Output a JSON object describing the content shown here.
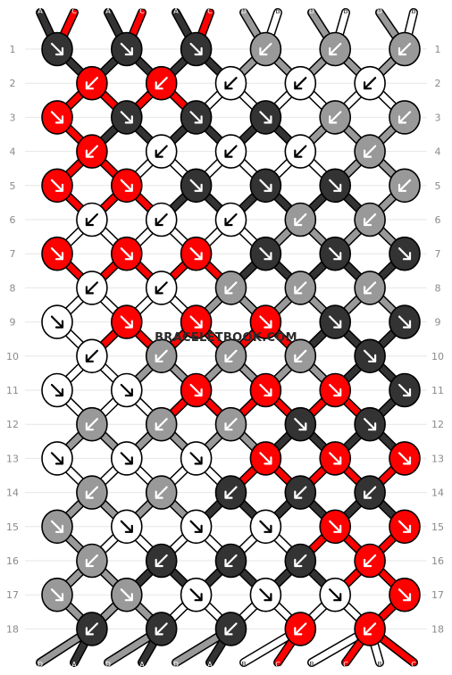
{
  "watermark": "BRACELETBOOK.COM",
  "colors": {
    "A": "#333333",
    "B": "#ffffff",
    "C": "#ff0000",
    "D": "#999999",
    "outline": "#000000"
  },
  "top_labels": [
    "A",
    "C",
    "A",
    "C",
    "A",
    "C",
    "D",
    "B",
    "D",
    "B",
    "D",
    "B"
  ],
  "bottom_labels": [
    "D",
    "A",
    "D",
    "A",
    "D",
    "A",
    "B",
    "C",
    "B",
    "C",
    "B",
    "C"
  ],
  "row_numbers": [
    "1",
    "2",
    "3",
    "4",
    "5",
    "6",
    "7",
    "8",
    "9",
    "10",
    "11",
    "12",
    "13",
    "14",
    "15",
    "16",
    "17",
    "18"
  ],
  "knots": [
    {
      "row": 1,
      "col": 1,
      "color": "A",
      "dir": "RR"
    },
    {
      "row": 1,
      "col": 3,
      "color": "A",
      "dir": "RR"
    },
    {
      "row": 1,
      "col": 5,
      "color": "A",
      "dir": "RR"
    },
    {
      "row": 1,
      "col": 7,
      "color": "D",
      "dir": "LL"
    },
    {
      "row": 1,
      "col": 9,
      "color": "D",
      "dir": "LL"
    },
    {
      "row": 1,
      "col": 11,
      "color": "D",
      "dir": "LL"
    },
    {
      "row": 2,
      "col": 2,
      "color": "C",
      "dir": "LL"
    },
    {
      "row": 2,
      "col": 4,
      "color": "C",
      "dir": "LL"
    },
    {
      "row": 2,
      "col": 6,
      "color": "B",
      "dir": "LL"
    },
    {
      "row": 2,
      "col": 8,
      "color": "B",
      "dir": "LL"
    },
    {
      "row": 2,
      "col": 10,
      "color": "B",
      "dir": "LL"
    },
    {
      "row": 3,
      "col": 1,
      "color": "C",
      "dir": "RR"
    },
    {
      "row": 3,
      "col": 3,
      "color": "A",
      "dir": "RR"
    },
    {
      "row": 3,
      "col": 5,
      "color": "A",
      "dir": "RR"
    },
    {
      "row": 3,
      "col": 7,
      "color": "A",
      "dir": "RR"
    },
    {
      "row": 3,
      "col": 9,
      "color": "D",
      "dir": "LL"
    },
    {
      "row": 3,
      "col": 11,
      "color": "D",
      "dir": "LL"
    },
    {
      "row": 4,
      "col": 2,
      "color": "C",
      "dir": "LL"
    },
    {
      "row": 4,
      "col": 4,
      "color": "B",
      "dir": "LL"
    },
    {
      "row": 4,
      "col": 6,
      "color": "B",
      "dir": "LL"
    },
    {
      "row": 4,
      "col": 8,
      "color": "B",
      "dir": "LL"
    },
    {
      "row": 4,
      "col": 10,
      "color": "D",
      "dir": "LL"
    },
    {
      "row": 5,
      "col": 1,
      "color": "C",
      "dir": "RR"
    },
    {
      "row": 5,
      "col": 3,
      "color": "C",
      "dir": "RR"
    },
    {
      "row": 5,
      "col": 5,
      "color": "A",
      "dir": "RR"
    },
    {
      "row": 5,
      "col": 7,
      "color": "A",
      "dir": "RR"
    },
    {
      "row": 5,
      "col": 9,
      "color": "A",
      "dir": "RR"
    },
    {
      "row": 5,
      "col": 11,
      "color": "D",
      "dir": "LL"
    },
    {
      "row": 6,
      "col": 2,
      "color": "B",
      "dir": "LL"
    },
    {
      "row": 6,
      "col": 4,
      "color": "B",
      "dir": "LL"
    },
    {
      "row": 6,
      "col": 6,
      "color": "B",
      "dir": "LL"
    },
    {
      "row": 6,
      "col": 8,
      "color": "D",
      "dir": "LL"
    },
    {
      "row": 6,
      "col": 10,
      "color": "D",
      "dir": "LL"
    },
    {
      "row": 7,
      "col": 1,
      "color": "C",
      "dir": "RR"
    },
    {
      "row": 7,
      "col": 3,
      "color": "C",
      "dir": "RR"
    },
    {
      "row": 7,
      "col": 5,
      "color": "C",
      "dir": "RR"
    },
    {
      "row": 7,
      "col": 7,
      "color": "A",
      "dir": "RR"
    },
    {
      "row": 7,
      "col": 9,
      "color": "A",
      "dir": "RR"
    },
    {
      "row": 7,
      "col": 11,
      "color": "A",
      "dir": "RR"
    },
    {
      "row": 8,
      "col": 2,
      "color": "B",
      "dir": "LL"
    },
    {
      "row": 8,
      "col": 4,
      "color": "B",
      "dir": "LL"
    },
    {
      "row": 8,
      "col": 6,
      "color": "D",
      "dir": "LL"
    },
    {
      "row": 8,
      "col": 8,
      "color": "D",
      "dir": "LL"
    },
    {
      "row": 8,
      "col": 10,
      "color": "D",
      "dir": "LL"
    },
    {
      "row": 9,
      "col": 1,
      "color": "B",
      "dir": "RR"
    },
    {
      "row": 9,
      "col": 3,
      "color": "C",
      "dir": "RR"
    },
    {
      "row": 9,
      "col": 5,
      "color": "C",
      "dir": "RR"
    },
    {
      "row": 9,
      "col": 7,
      "color": "C",
      "dir": "RR"
    },
    {
      "row": 9,
      "col": 9,
      "color": "A",
      "dir": "RR"
    },
    {
      "row": 9,
      "col": 11,
      "color": "A",
      "dir": "RR"
    },
    {
      "row": 10,
      "col": 2,
      "color": "B",
      "dir": "LL"
    },
    {
      "row": 10,
      "col": 4,
      "color": "D",
      "dir": "LL"
    },
    {
      "row": 10,
      "col": 6,
      "color": "D",
      "dir": "LL"
    },
    {
      "row": 10,
      "col": 8,
      "color": "D",
      "dir": "LL"
    },
    {
      "row": 10,
      "col": 10,
      "color": "A",
      "dir": "RR"
    },
    {
      "row": 11,
      "col": 1,
      "color": "B",
      "dir": "RR"
    },
    {
      "row": 11,
      "col": 3,
      "color": "B",
      "dir": "RR"
    },
    {
      "row": 11,
      "col": 5,
      "color": "C",
      "dir": "RR"
    },
    {
      "row": 11,
      "col": 7,
      "color": "C",
      "dir": "RR"
    },
    {
      "row": 11,
      "col": 9,
      "color": "C",
      "dir": "RR"
    },
    {
      "row": 11,
      "col": 11,
      "color": "A",
      "dir": "RR"
    },
    {
      "row": 12,
      "col": 2,
      "color": "D",
      "dir": "LL"
    },
    {
      "row": 12,
      "col": 4,
      "color": "D",
      "dir": "LL"
    },
    {
      "row": 12,
      "col": 6,
      "color": "D",
      "dir": "LL"
    },
    {
      "row": 12,
      "col": 8,
      "color": "A",
      "dir": "RR"
    },
    {
      "row": 12,
      "col": 10,
      "color": "A",
      "dir": "RR"
    },
    {
      "row": 13,
      "col": 1,
      "color": "B",
      "dir": "RR"
    },
    {
      "row": 13,
      "col": 3,
      "color": "B",
      "dir": "RR"
    },
    {
      "row": 13,
      "col": 5,
      "color": "B",
      "dir": "RR"
    },
    {
      "row": 13,
      "col": 7,
      "color": "C",
      "dir": "RR"
    },
    {
      "row": 13,
      "col": 9,
      "color": "C",
      "dir": "RR"
    },
    {
      "row": 13,
      "col": 11,
      "color": "C",
      "dir": "RR"
    },
    {
      "row": 14,
      "col": 2,
      "color": "D",
      "dir": "LL"
    },
    {
      "row": 14,
      "col": 4,
      "color": "D",
      "dir": "LL"
    },
    {
      "row": 14,
      "col": 6,
      "color": "A",
      "dir": "LL"
    },
    {
      "row": 14,
      "col": 8,
      "color": "A",
      "dir": "LL"
    },
    {
      "row": 14,
      "col": 10,
      "color": "A",
      "dir": "LL"
    },
    {
      "row": 15,
      "col": 1,
      "color": "D",
      "dir": "RR"
    },
    {
      "row": 15,
      "col": 3,
      "color": "B",
      "dir": "RR"
    },
    {
      "row": 15,
      "col": 5,
      "color": "B",
      "dir": "RR"
    },
    {
      "row": 15,
      "col": 7,
      "color": "B",
      "dir": "RR"
    },
    {
      "row": 15,
      "col": 9,
      "color": "C",
      "dir": "RR"
    },
    {
      "row": 15,
      "col": 11,
      "color": "C",
      "dir": "RR"
    },
    {
      "row": 16,
      "col": 2,
      "color": "D",
      "dir": "LL"
    },
    {
      "row": 16,
      "col": 4,
      "color": "A",
      "dir": "LL"
    },
    {
      "row": 16,
      "col": 6,
      "color": "A",
      "dir": "LL"
    },
    {
      "row": 16,
      "col": 8,
      "color": "A",
      "dir": "LL"
    },
    {
      "row": 16,
      "col": 10,
      "color": "C",
      "dir": "LL"
    },
    {
      "row": 17,
      "col": 1,
      "color": "D",
      "dir": "RR"
    },
    {
      "row": 17,
      "col": 3,
      "color": "D",
      "dir": "RR"
    },
    {
      "row": 17,
      "col": 5,
      "color": "B",
      "dir": "RR"
    },
    {
      "row": 17,
      "col": 7,
      "color": "B",
      "dir": "RR"
    },
    {
      "row": 17,
      "col": 9,
      "color": "B",
      "dir": "RR"
    },
    {
      "row": 17,
      "col": 11,
      "color": "C",
      "dir": "RR"
    },
    {
      "row": 18,
      "col": 2,
      "color": "A",
      "dir": "LL"
    },
    {
      "row": 18,
      "col": 4,
      "color": "A",
      "dir": "LL"
    },
    {
      "row": 18,
      "col": 6,
      "color": "A",
      "dir": "LL"
    },
    {
      "row": 18,
      "col": 8,
      "color": "C",
      "dir": "LL"
    },
    {
      "row": 18,
      "col": 10,
      "color": "C",
      "dir": "LL"
    }
  ]
}
